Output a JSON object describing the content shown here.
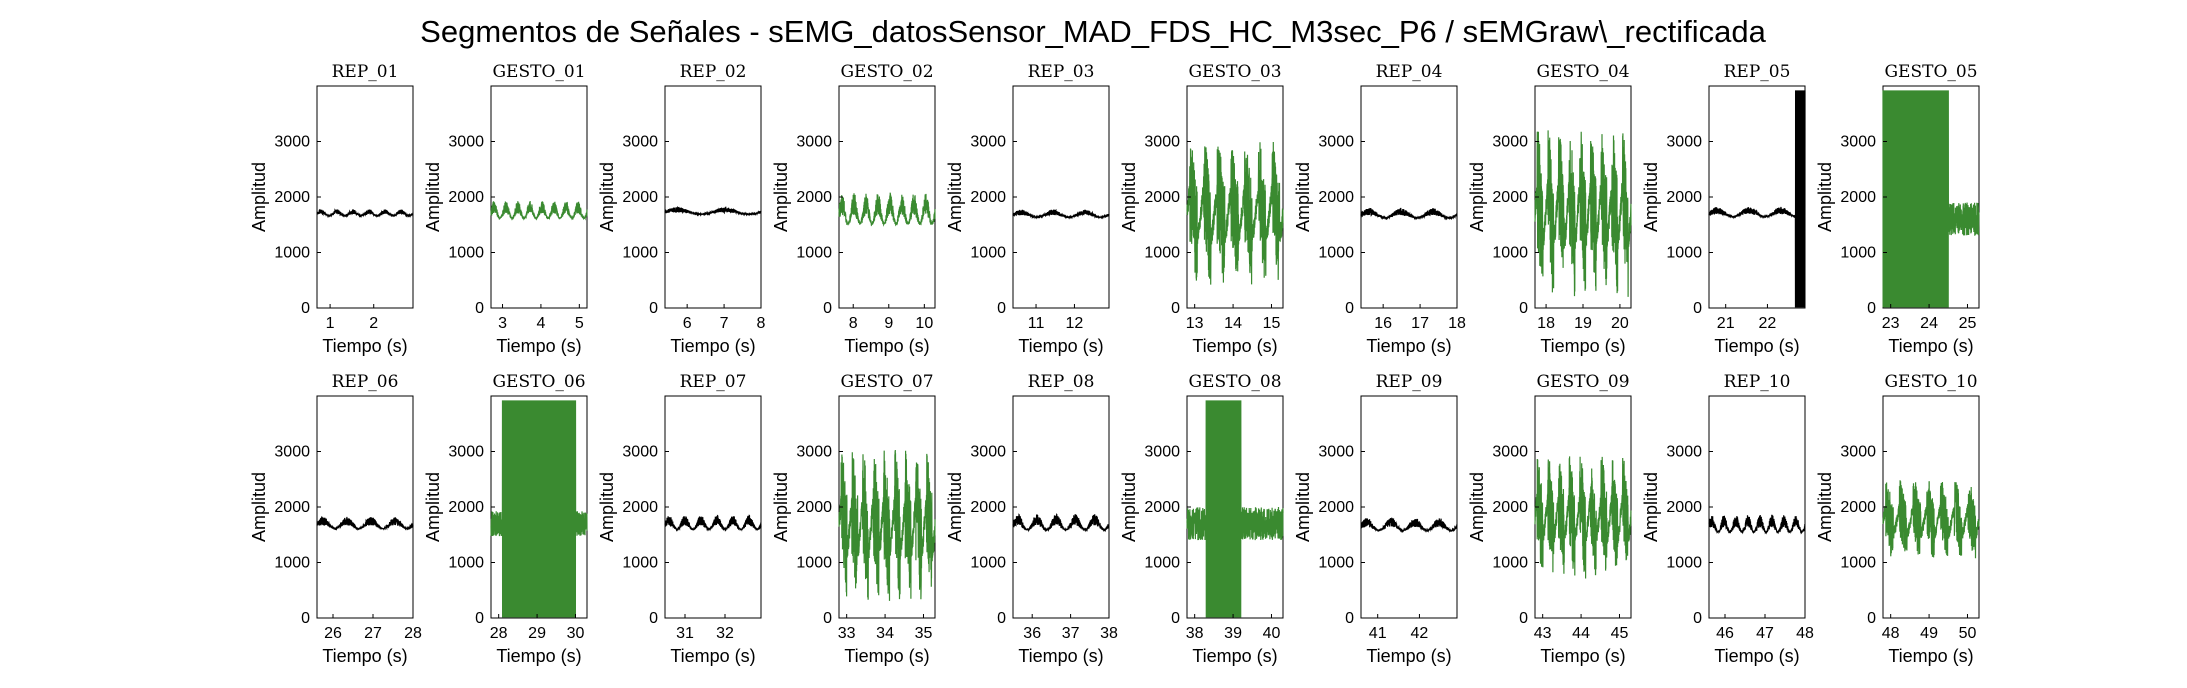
{
  "chart_data": {
    "type": "line",
    "title": "Segmentos de Señales - sEMG_datosSensor_MAD_FDS_HC_M3sec_P6 / sEMGraw\\_rectificada",
    "xlabel": "Tiempo (s)",
    "ylabel": "Amplitud",
    "ylim": [
      0,
      4000
    ],
    "yticks": [
      "0",
      "1000",
      "2000",
      "3000"
    ],
    "grid": false,
    "colors": {
      "rep": "#000000",
      "gesto": "#3a8a30"
    },
    "panels": [
      {
        "title": "REP_01",
        "kind": "rep",
        "xlim": [
          0.7,
          2.9
        ],
        "xticks": [
          "1",
          "2"
        ],
        "baseline": 1700,
        "amp": 90,
        "bursts": 0,
        "cycles": 6
      },
      {
        "title": "GESTO_01",
        "kind": "gesto",
        "xlim": [
          2.7,
          5.2
        ],
        "xticks": [
          "3",
          "4",
          "5"
        ],
        "baseline": 1720,
        "amp": 250,
        "bursts": 0,
        "cycles": 8
      },
      {
        "title": "REP_02",
        "kind": "rep",
        "xlim": [
          5.4,
          8.0
        ],
        "xticks": [
          "6",
          "7",
          "8"
        ],
        "baseline": 1730,
        "amp": 100,
        "bursts": 0,
        "cycles": 2
      },
      {
        "title": "GESTO_02",
        "kind": "gesto",
        "xlim": [
          7.6,
          10.3
        ],
        "xticks": [
          "8",
          "9",
          "10"
        ],
        "baseline": 1700,
        "amp": 450,
        "bursts": 0,
        "cycles": 8
      },
      {
        "title": "REP_03",
        "kind": "rep",
        "xlim": [
          10.4,
          12.9
        ],
        "xticks": [
          "11",
          "12"
        ],
        "baseline": 1680,
        "amp": 110,
        "bursts": 0,
        "cycles": 3
      },
      {
        "title": "GESTO_03",
        "kind": "gesto",
        "xlim": [
          12.8,
          15.3
        ],
        "xticks": [
          "13",
          "14",
          "15"
        ],
        "baseline": 1700,
        "amp": 950,
        "bursts": 7,
        "cycles": 7
      },
      {
        "title": "REP_04",
        "kind": "rep",
        "xlim": [
          15.4,
          18.0
        ],
        "xticks": [
          "16",
          "17",
          "18"
        ],
        "baseline": 1680,
        "amp": 140,
        "bursts": 0,
        "cycles": 3
      },
      {
        "title": "GESTO_04",
        "kind": "gesto",
        "xlim": [
          17.7,
          20.3
        ],
        "xticks": [
          "18",
          "19",
          "20"
        ],
        "baseline": 1700,
        "amp": 1100,
        "bursts": 9,
        "cycles": 9
      },
      {
        "title": "REP_05",
        "kind": "rep",
        "xlim": [
          20.6,
          22.9
        ],
        "xticks": [
          "21",
          "22"
        ],
        "baseline": 1700,
        "amp": 140,
        "bursts": 0,
        "cycles": 3,
        "saturate_end": true
      },
      {
        "title": "GESTO_05",
        "kind": "gesto",
        "xlim": [
          22.8,
          25.3
        ],
        "xticks": [
          "23",
          "24",
          "25"
        ],
        "baseline": 1600,
        "amp": 2000,
        "bursts": 0,
        "cycles": 0,
        "saturate_span": [
          22.8,
          24.5
        ]
      },
      {
        "title": "REP_06",
        "kind": "rep",
        "xlim": [
          25.6,
          28.0
        ],
        "xticks": [
          "26",
          "27",
          "28"
        ],
        "baseline": 1680,
        "amp": 170,
        "bursts": 0,
        "cycles": 4
      },
      {
        "title": "GESTO_06",
        "kind": "gesto",
        "xlim": [
          27.8,
          30.3
        ],
        "xticks": [
          "28",
          "29",
          "30"
        ],
        "baseline": 1700,
        "amp": 1500,
        "bursts": 0,
        "cycles": 0,
        "saturate_span": [
          28.1,
          30.0
        ]
      },
      {
        "title": "REP_07",
        "kind": "rep",
        "xlim": [
          30.5,
          32.9
        ],
        "xticks": [
          "31",
          "32"
        ],
        "baseline": 1680,
        "amp": 200,
        "bursts": 0,
        "cycles": 6
      },
      {
        "title": "GESTO_07",
        "kind": "gesto",
        "xlim": [
          32.8,
          35.3
        ],
        "xticks": [
          "33",
          "34",
          "35"
        ],
        "baseline": 1650,
        "amp": 1000,
        "bursts": 9,
        "cycles": 9
      },
      {
        "title": "REP_08",
        "kind": "rep",
        "xlim": [
          35.5,
          38.0
        ],
        "xticks": [
          "36",
          "37",
          "38"
        ],
        "baseline": 1680,
        "amp": 230,
        "bursts": 0,
        "cycles": 5
      },
      {
        "title": "GESTO_08",
        "kind": "gesto",
        "xlim": [
          37.8,
          40.3
        ],
        "xticks": [
          "38",
          "39",
          "40"
        ],
        "baseline": 1700,
        "amp": 2000,
        "bursts": 0,
        "cycles": 0,
        "saturate_span": [
          38.3,
          39.2
        ]
      },
      {
        "title": "REP_09",
        "kind": "rep",
        "xlim": [
          40.6,
          42.9
        ],
        "xticks": [
          "41",
          "42"
        ],
        "baseline": 1650,
        "amp": 180,
        "bursts": 0,
        "cycles": 4
      },
      {
        "title": "GESTO_09",
        "kind": "gesto",
        "xlim": [
          42.8,
          45.3
        ],
        "xticks": [
          "43",
          "44",
          "45"
        ],
        "baseline": 1800,
        "amp": 800,
        "bursts": 9,
        "cycles": 9
      },
      {
        "title": "REP_10",
        "kind": "rep",
        "xlim": [
          45.6,
          48.0
        ],
        "xticks": [
          "46",
          "47",
          "48"
        ],
        "baseline": 1650,
        "amp": 250,
        "bursts": 0,
        "cycles": 8
      },
      {
        "title": "GESTO_10",
        "kind": "gesto",
        "xlim": [
          47.8,
          50.3
        ],
        "xticks": [
          "48",
          "49",
          "50"
        ],
        "baseline": 1750,
        "amp": 550,
        "bursts": 7,
        "cycles": 7
      }
    ]
  }
}
